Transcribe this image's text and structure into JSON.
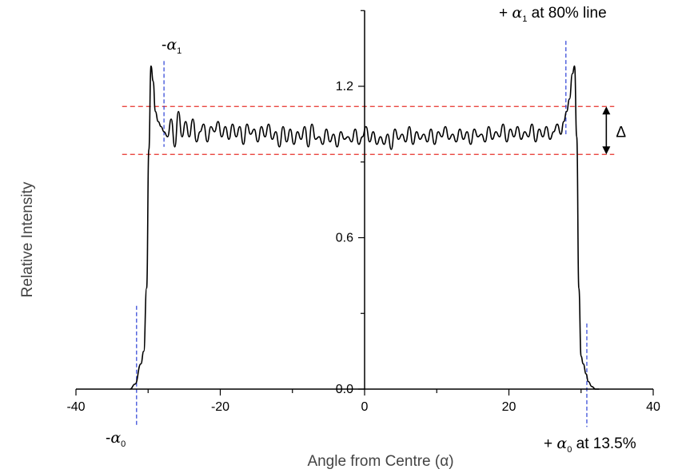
{
  "chart_data": {
    "type": "line",
    "title": "",
    "xlabel": "Angle from Centre (α)",
    "ylabel": "Relative Intensity",
    "xlim": [
      -40,
      40
    ],
    "ylim": [
      0,
      1.5
    ],
    "x_ticks": [
      -40,
      -20,
      0,
      20,
      40
    ],
    "x_tick_labels": [
      "-40",
      "-20",
      "0",
      "20",
      "40"
    ],
    "y_ticks": [
      0.0,
      0.6,
      1.2
    ],
    "y_tick_labels": [
      "0.0",
      "0.6",
      "1.2"
    ],
    "grid": false,
    "series": [
      {
        "name": "",
        "color": "#000000",
        "x": [
          -32.5,
          -31.8,
          -31.0,
          -30.6,
          -30.2,
          -29.9,
          -29.6,
          -29.3,
          -29.0,
          -28.6,
          -28.2,
          -27.8,
          -27.3,
          -26.8,
          -26.3,
          -25.8,
          -25.3,
          -24.8,
          -24.3,
          -23.8,
          -23.3,
          -22.8,
          -22.3,
          -21.8,
          -21.3,
          -20.8,
          -20.3,
          -19.8,
          -19.3,
          -18.8,
          -18.3,
          -17.8,
          -17.3,
          -16.8,
          -16.3,
          -15.8,
          -15.3,
          -14.8,
          -14.3,
          -13.8,
          -13.3,
          -12.8,
          -12.3,
          -11.8,
          -11.3,
          -10.8,
          -10.3,
          -9.8,
          -9.3,
          -8.8,
          -8.3,
          -7.8,
          -7.3,
          -6.8,
          -6.3,
          -5.8,
          -5.3,
          -4.8,
          -4.3,
          -3.8,
          -3.3,
          -2.8,
          -2.3,
          -1.8,
          -1.3,
          -0.8,
          -0.3,
          0.2,
          0.7,
          1.2,
          1.7,
          2.2,
          2.7,
          3.2,
          3.7,
          4.2,
          4.7,
          5.2,
          5.7,
          6.2,
          6.7,
          7.2,
          7.7,
          8.2,
          8.7,
          9.2,
          9.7,
          10.2,
          10.7,
          11.2,
          11.7,
          12.2,
          12.7,
          13.2,
          13.7,
          14.2,
          14.7,
          15.2,
          15.7,
          16.2,
          16.7,
          17.2,
          17.7,
          18.2,
          18.7,
          19.2,
          19.7,
          20.2,
          20.7,
          21.2,
          21.7,
          22.2,
          22.7,
          23.2,
          23.7,
          24.2,
          24.7,
          25.2,
          25.7,
          26.2,
          26.7,
          27.2,
          27.6,
          28.0,
          28.4,
          28.8,
          29.1,
          29.4,
          29.7,
          30.0,
          30.3,
          30.7,
          31.0,
          31.5,
          32.0,
          32.5
        ],
        "y": [
          0.0,
          0.02,
          0.1,
          0.15,
          0.4,
          0.95,
          1.28,
          1.22,
          1.1,
          1.06,
          1.04,
          1.02,
          1.0,
          1.07,
          0.96,
          1.1,
          1.0,
          1.06,
          1.0,
          1.07,
          0.98,
          1.02,
          1.05,
          0.98,
          1.04,
          1.02,
          1.06,
          1.0,
          1.04,
          0.99,
          1.05,
          1.0,
          1.04,
          0.97,
          1.05,
          1.01,
          1.03,
          0.98,
          1.04,
          1.0,
          1.05,
          0.99,
          1.02,
          0.96,
          1.04,
          0.98,
          1.03,
          0.97,
          1.02,
          0.99,
          1.04,
          0.96,
          1.05,
          0.99,
          1.0,
          0.97,
          1.03,
          0.98,
          1.01,
          0.96,
          1.02,
          0.99,
          1.0,
          0.98,
          1.03,
          0.97,
          1.0,
          1.04,
          0.98,
          1.02,
          0.97,
          1.0,
          0.97,
          1.01,
          0.95,
          1.03,
          0.99,
          1.01,
          0.98,
          1.04,
          0.97,
          1.02,
          0.99,
          1.01,
          0.98,
          1.03,
          0.97,
          1.02,
          1.0,
          1.04,
          0.99,
          1.01,
          0.98,
          1.03,
          0.99,
          1.02,
          0.97,
          1.03,
          1.0,
          1.01,
          0.98,
          1.04,
          0.99,
          1.02,
          1.0,
          1.05,
          0.98,
          1.03,
          1.0,
          1.04,
          0.99,
          1.02,
          1.0,
          1.05,
          0.98,
          1.03,
          1.0,
          1.04,
          0.99,
          1.02,
          1.05,
          1.01,
          1.06,
          1.1,
          1.15,
          1.25,
          1.28,
          1.0,
          0.4,
          0.13,
          0.1,
          0.06,
          0.03,
          0.01,
          0.0,
          0.0
        ]
      }
    ],
    "reference_lines": {
      "horizontal": [
        {
          "y": 1.12,
          "color": "#e8302a",
          "style": "dashed"
        },
        {
          "y": 0.93,
          "color": "#e8302a",
          "style": "dashed"
        }
      ],
      "vertical": [
        {
          "x": -27.8,
          "y_range": [
            0.96,
            1.3
          ],
          "color": "#2a3fd6",
          "style": "dashed"
        },
        {
          "x": 27.9,
          "y_range": [
            1.01,
            1.38
          ],
          "color": "#2a3fd6",
          "style": "dashed"
        },
        {
          "x": -31.6,
          "y_range": [
            -0.15,
            0.33
          ],
          "color": "#2a3fd6",
          "style": "dashed"
        },
        {
          "x": 30.8,
          "y_range": [
            -0.15,
            0.26
          ],
          "color": "#2a3fd6",
          "style": "dashed"
        }
      ]
    },
    "delta_marker": {
      "x": 33.5,
      "y_top": 1.12,
      "y_bottom": 0.93,
      "label": "Δ"
    },
    "annotations": {
      "alpha1_left": {
        "prefix": "-",
        "symbol": "α",
        "sub": "1"
      },
      "alpha1_right": {
        "prefix": "+ ",
        "symbol": "α",
        "sub": "1",
        "suffix": " at 80% line"
      },
      "alpha0_left": {
        "prefix": "-",
        "symbol": "α",
        "sub": "0"
      },
      "alpha0_right": {
        "prefix": "+ ",
        "symbol": "α",
        "sub": "0",
        "suffix": " at 13.5%"
      }
    }
  }
}
